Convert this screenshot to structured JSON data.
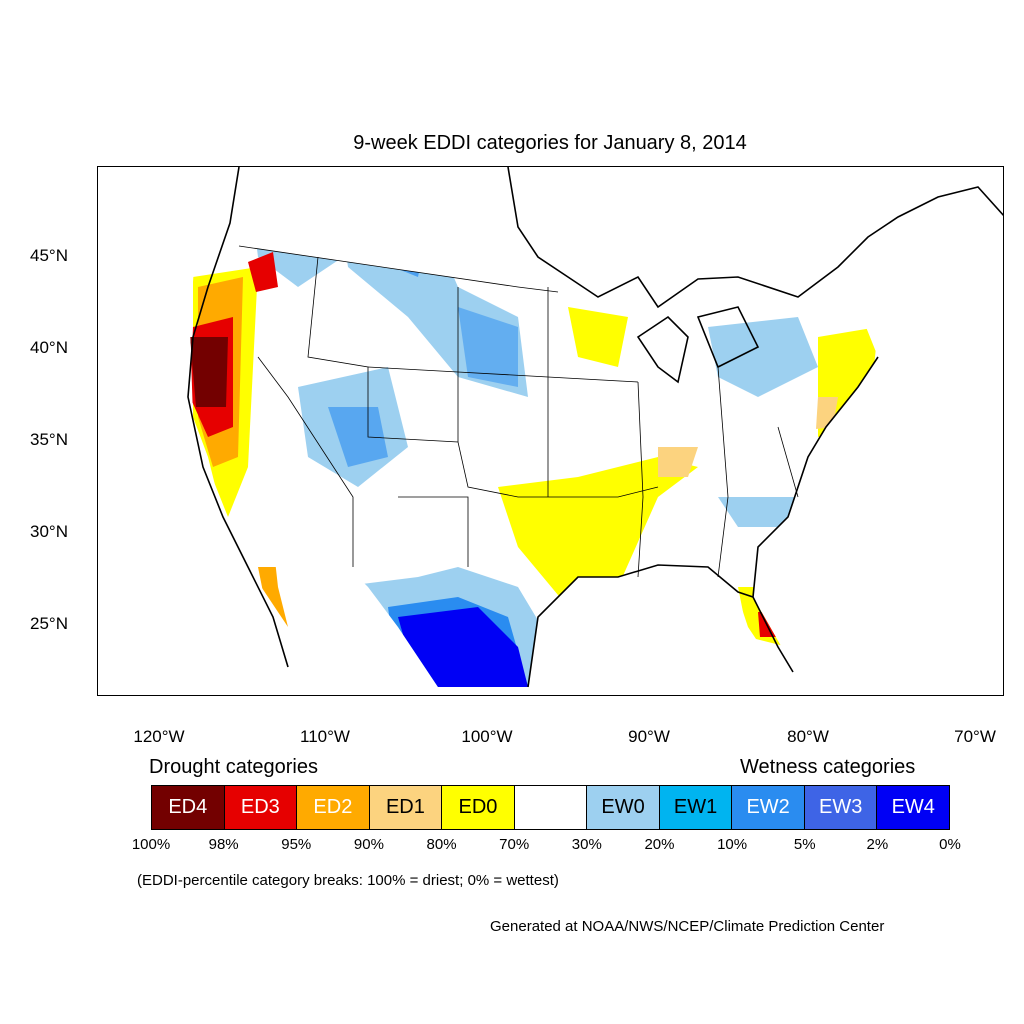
{
  "title": "9-week EDDI categories for January 8, 2014",
  "axes": {
    "lat_ticks": [
      "45°N",
      "40°N",
      "35°N",
      "30°N",
      "25°N"
    ],
    "lon_ticks": [
      "120°W",
      "110°W",
      "100°W",
      "90°W",
      "80°W",
      "70°W"
    ]
  },
  "legend": {
    "drought_heading": "Drought categories",
    "wetness_heading": "Wetness categories",
    "categories": [
      {
        "label": "ED4",
        "color": "#730000",
        "text_color": "#ffffff"
      },
      {
        "label": "ED3",
        "color": "#e60000",
        "text_color": "#ffffff"
      },
      {
        "label": "ED2",
        "color": "#ffaa00",
        "text_color": "#ffffff"
      },
      {
        "label": "ED1",
        "color": "#fcd37f",
        "text_color": "#000000"
      },
      {
        "label": "ED0",
        "color": "#ffff00",
        "text_color": "#000000"
      },
      {
        "label": "",
        "color": "#ffffff",
        "text_color": "#000000"
      },
      {
        "label": "EW0",
        "color": "#9dd0f0",
        "text_color": "#000000"
      },
      {
        "label": "EW1",
        "color": "#00b4f0",
        "text_color": "#000000"
      },
      {
        "label": "EW2",
        "color": "#2a8cf0",
        "text_color": "#ffffff"
      },
      {
        "label": "EW3",
        "color": "#3e64e6",
        "text_color": "#ffffff"
      },
      {
        "label": "EW4",
        "color": "#0000f5",
        "text_color": "#ffffff"
      }
    ],
    "breaks": [
      "100%",
      "98%",
      "95%",
      "90%",
      "80%",
      "70%",
      "30%",
      "20%",
      "10%",
      "5%",
      "2%",
      "0%"
    ]
  },
  "note": "(EDDI-percentile category breaks: 100% = driest; 0% = wettest)",
  "credit": "Generated at NOAA/NWS/NCEP/Climate Prediction Center"
}
